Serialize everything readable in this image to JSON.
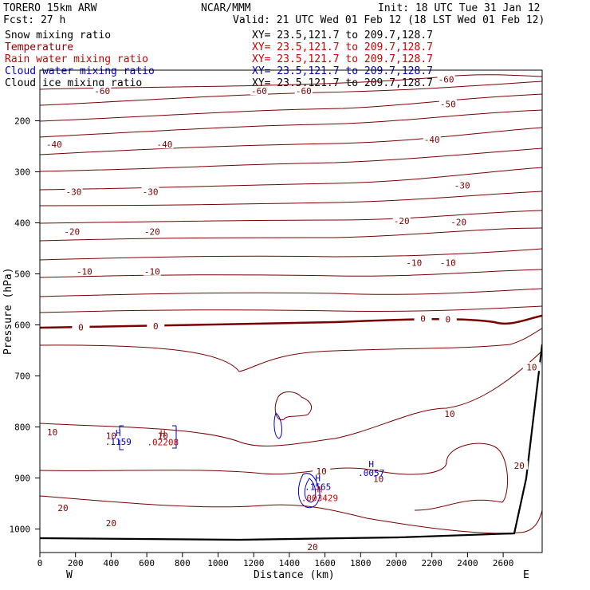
{
  "header": {
    "model": "TORERO  15km ARW",
    "center": "NCAR/MMM",
    "init": "Init: 18 UTC Tue 31 Jan 12",
    "fcst": "Fcst:   27 h",
    "valid": "Valid: 21 UTC Wed 01 Feb 12 (18 LST Wed 01 Feb 12)"
  },
  "fields": [
    {
      "name": "Snow mixing ratio",
      "xy": "XY=  23.5,121.7 to 209.7,128.7",
      "color": "#000000",
      "xy_color": "#000000"
    },
    {
      "name": "Temperature",
      "xy": "XY=  23.5,121.7 to 209.7,128.7",
      "color": "#8b0000",
      "xy_color": "#cc0000"
    },
    {
      "name": "Rain water mixing ratio",
      "xy": "XY=  23.5,121.7 to 209.7,128.7",
      "color": "#cc0000",
      "xy_color": "#cc0000"
    },
    {
      "name": "Cloud water mixing ratio",
      "xy": "XY=  23.5,121.7 to 209.7,128.7",
      "color": "#0000bb",
      "xy_color": "#0000bb"
    },
    {
      "name": "Cloud ice mixing ratio",
      "xy": "XY=  23.5,121.7 to 209.7,128.7",
      "color": "#000000",
      "xy_color": "#000000"
    }
  ],
  "chart_data": {
    "type": "contour",
    "xlabel": "Distance (km)",
    "ylabel": "Pressure (hPa)",
    "x_ticks": [
      0,
      200,
      400,
      600,
      800,
      1000,
      1200,
      1400,
      1600,
      1800,
      2000,
      2200,
      2400,
      2600
    ],
    "y_ticks": [
      200,
      300,
      400,
      500,
      600,
      700,
      800,
      900,
      1000
    ],
    "xlim": [
      0,
      2800
    ],
    "ylim": [
      1030,
      100
    ],
    "x_end_labels": {
      "left": "W",
      "right": "E"
    },
    "temperature_labels": [
      {
        "text": "-60",
        "x": 350,
        "p": 143
      },
      {
        "text": "-60",
        "x": 1230,
        "p": 143
      },
      {
        "text": "-60",
        "x": 1480,
        "p": 143
      },
      {
        "text": "-60",
        "x": 2280,
        "p": 120
      },
      {
        "text": "-50",
        "x": 2290,
        "p": 169
      },
      {
        "text": "-40",
        "x": 80,
        "p": 248
      },
      {
        "text": "-40",
        "x": 700,
        "p": 248
      },
      {
        "text": "-40",
        "x": 2200,
        "p": 238
      },
      {
        "text": "-30",
        "x": 190,
        "p": 341
      },
      {
        "text": "-30",
        "x": 620,
        "p": 341
      },
      {
        "text": "-30",
        "x": 2370,
        "p": 328
      },
      {
        "text": "-20",
        "x": 180,
        "p": 419
      },
      {
        "text": "-20",
        "x": 630,
        "p": 419
      },
      {
        "text": "-20",
        "x": 2030,
        "p": 398
      },
      {
        "text": "-20",
        "x": 2350,
        "p": 400
      },
      {
        "text": "-10",
        "x": 250,
        "p": 497
      },
      {
        "text": "-10",
        "x": 630,
        "p": 497
      },
      {
        "text": "-10",
        "x": 2100,
        "p": 480
      },
      {
        "text": "-10",
        "x": 2290,
        "p": 480
      },
      {
        "text": "0",
        "x": 230,
        "p": 606
      },
      {
        "text": "0",
        "x": 650,
        "p": 604
      },
      {
        "text": "0",
        "x": 2150,
        "p": 589
      },
      {
        "text": "0",
        "x": 2290,
        "p": 591
      },
      {
        "text": "10",
        "x": 70,
        "p": 812
      },
      {
        "text": "10",
        "x": 400,
        "p": 819
      },
      {
        "text": "10",
        "x": 690,
        "p": 819
      },
      {
        "text": "10",
        "x": 2300,
        "p": 776
      },
      {
        "text": "10",
        "x": 1580,
        "p": 888
      },
      {
        "text": "10",
        "x": 1900,
        "p": 903
      },
      {
        "text": "10",
        "x": 2760,
        "p": 684
      },
      {
        "text": "20",
        "x": 130,
        "p": 960
      },
      {
        "text": "20",
        "x": 400,
        "p": 990
      },
      {
        "text": "20",
        "x": 2690,
        "p": 877
      },
      {
        "text": "20",
        "x": 1530,
        "p": 1037
      }
    ],
    "maxima_labels": [
      {
        "text": "H",
        "value": ".1159",
        "x": 440,
        "p": 818,
        "field": "Cloud water mixing ratio"
      },
      {
        "text": "H",
        "value": ".02208",
        "x": 690,
        "p": 819,
        "field": "Rain water mixing ratio"
      },
      {
        "text": "H",
        "value": ".1565",
        "x": 1560,
        "p": 906,
        "field": "Cloud water mixing ratio"
      },
      {
        "text": "H",
        "value": ".003429",
        "x": 1570,
        "p": 928,
        "field": "Rain water mixing ratio"
      },
      {
        "text": "H",
        "value": ".0057",
        "x": 1860,
        "p": 879,
        "field": "Cloud water mixing ratio"
      }
    ]
  }
}
